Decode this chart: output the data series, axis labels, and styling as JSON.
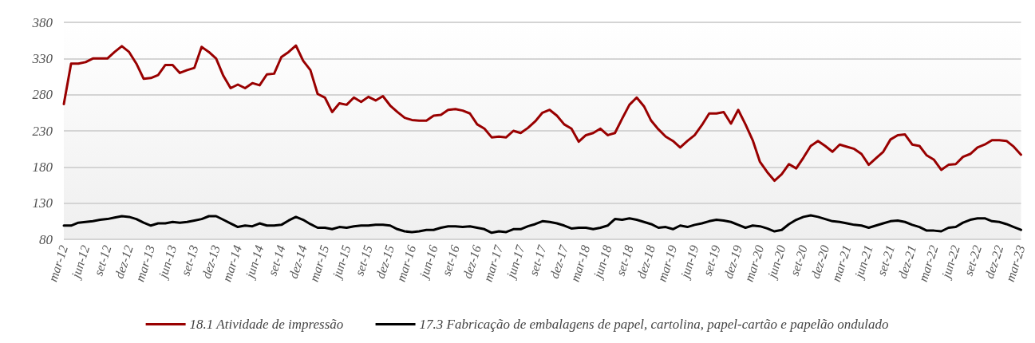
{
  "chart_data": {
    "type": "line",
    "categories": [
      "mar-12",
      null,
      null,
      "jun-12",
      null,
      null,
      "set-12",
      null,
      null,
      "dez-12",
      null,
      null,
      "mar-13",
      null,
      null,
      "jun-13",
      null,
      null,
      "set-13",
      null,
      null,
      "dez-13",
      null,
      null,
      "mar-14",
      null,
      null,
      "jun-14",
      null,
      null,
      "set-14",
      null,
      null,
      "dez-14",
      null,
      null,
      "mar-15",
      null,
      null,
      "jun-15",
      null,
      null,
      "set-15",
      null,
      null,
      "dez-15",
      null,
      null,
      "mar-16",
      null,
      null,
      "jun-16",
      null,
      null,
      "set-16",
      null,
      null,
      "dez-16",
      null,
      null,
      "mar-17",
      null,
      null,
      "jun-17",
      null,
      null,
      "set-17",
      null,
      null,
      "dez-17",
      null,
      null,
      "mar-18",
      null,
      null,
      "jun-18",
      null,
      null,
      "set-18",
      null,
      null,
      "dez-18",
      null,
      null,
      "mar-19",
      null,
      null,
      "jun-19",
      null,
      null,
      "set-19",
      null,
      null,
      "dez-19",
      null,
      null,
      "mar-20",
      null,
      null,
      "jun-20",
      null,
      null,
      "set-20",
      null,
      null,
      "dez-20",
      null,
      null,
      "mar-21",
      null,
      null,
      "jun-21",
      null,
      null,
      "set-21",
      null,
      null,
      "dez-21",
      null,
      null,
      "mar-22",
      null,
      null,
      "jun-22",
      null,
      null,
      "set-22",
      null,
      null,
      "dez-22",
      null,
      null,
      "mar-23"
    ],
    "series": [
      {
        "name": "18.1 Atividade de impressão",
        "color": "#990000",
        "values": [
          267,
          323,
          323,
          325,
          330,
          330,
          330,
          339,
          347,
          339,
          323,
          302,
          303,
          307,
          321,
          321,
          310,
          314,
          317,
          346,
          339,
          330,
          306,
          289,
          294,
          289,
          296,
          293,
          308,
          309,
          332,
          339,
          348,
          327,
          314,
          281,
          276,
          256,
          268,
          266,
          276,
          270,
          277,
          272,
          278,
          265,
          256,
          248,
          245,
          244,
          244,
          251,
          252,
          259,
          260,
          258,
          254,
          239,
          233,
          221,
          222,
          221,
          230,
          227,
          234,
          243,
          255,
          259,
          251,
          239,
          233,
          215,
          224,
          227,
          233,
          224,
          227,
          247,
          266,
          276,
          264,
          244,
          232,
          222,
          216,
          207,
          216,
          224,
          238,
          254,
          254,
          256,
          240,
          259,
          239,
          217,
          187,
          173,
          161,
          170,
          184,
          178,
          193,
          209,
          216,
          209,
          201,
          211,
          208,
          205,
          198,
          183,
          192,
          201,
          218,
          224,
          225,
          211,
          209,
          196,
          190,
          176,
          183,
          184,
          194,
          198,
          207,
          211,
          217,
          217,
          216,
          208,
          197
        ]
      },
      {
        "name": "17.3 Fabricação de embalagens de papel, cartolina, papel-cartão e papelão ondulado",
        "color": "#000000",
        "values": [
          99,
          99,
          103,
          104,
          105,
          107,
          108,
          110,
          112,
          111,
          108,
          103,
          99,
          102,
          102,
          104,
          103,
          104,
          106,
          108,
          112,
          112,
          107,
          102,
          97,
          99,
          98,
          102,
          99,
          99,
          100,
          106,
          111,
          107,
          101,
          96,
          96,
          94,
          97,
          96,
          98,
          99,
          99,
          100,
          100,
          99,
          94,
          91,
          90,
          91,
          93,
          93,
          96,
          98,
          98,
          97,
          98,
          96,
          94,
          89,
          91,
          90,
          94,
          94,
          98,
          101,
          105,
          104,
          102,
          99,
          95,
          96,
          96,
          94,
          96,
          99,
          108,
          107,
          109,
          107,
          104,
          101,
          96,
          97,
          94,
          99,
          97,
          100,
          102,
          105,
          107,
          106,
          104,
          100,
          96,
          99,
          98,
          95,
          91,
          93,
          101,
          107,
          111,
          113,
          111,
          108,
          105,
          104,
          102,
          100,
          99,
          96,
          99,
          102,
          105,
          106,
          104,
          100,
          97,
          92,
          92,
          91,
          96,
          97,
          103,
          107,
          109,
          109,
          105,
          104,
          101,
          97,
          93
        ]
      }
    ],
    "ylim": [
      80,
      380
    ],
    "yticks": [
      80,
      130,
      180,
      230,
      280,
      330,
      380
    ],
    "grid": "y",
    "legend": "bottom",
    "marker": "none",
    "line_style": "solid"
  }
}
